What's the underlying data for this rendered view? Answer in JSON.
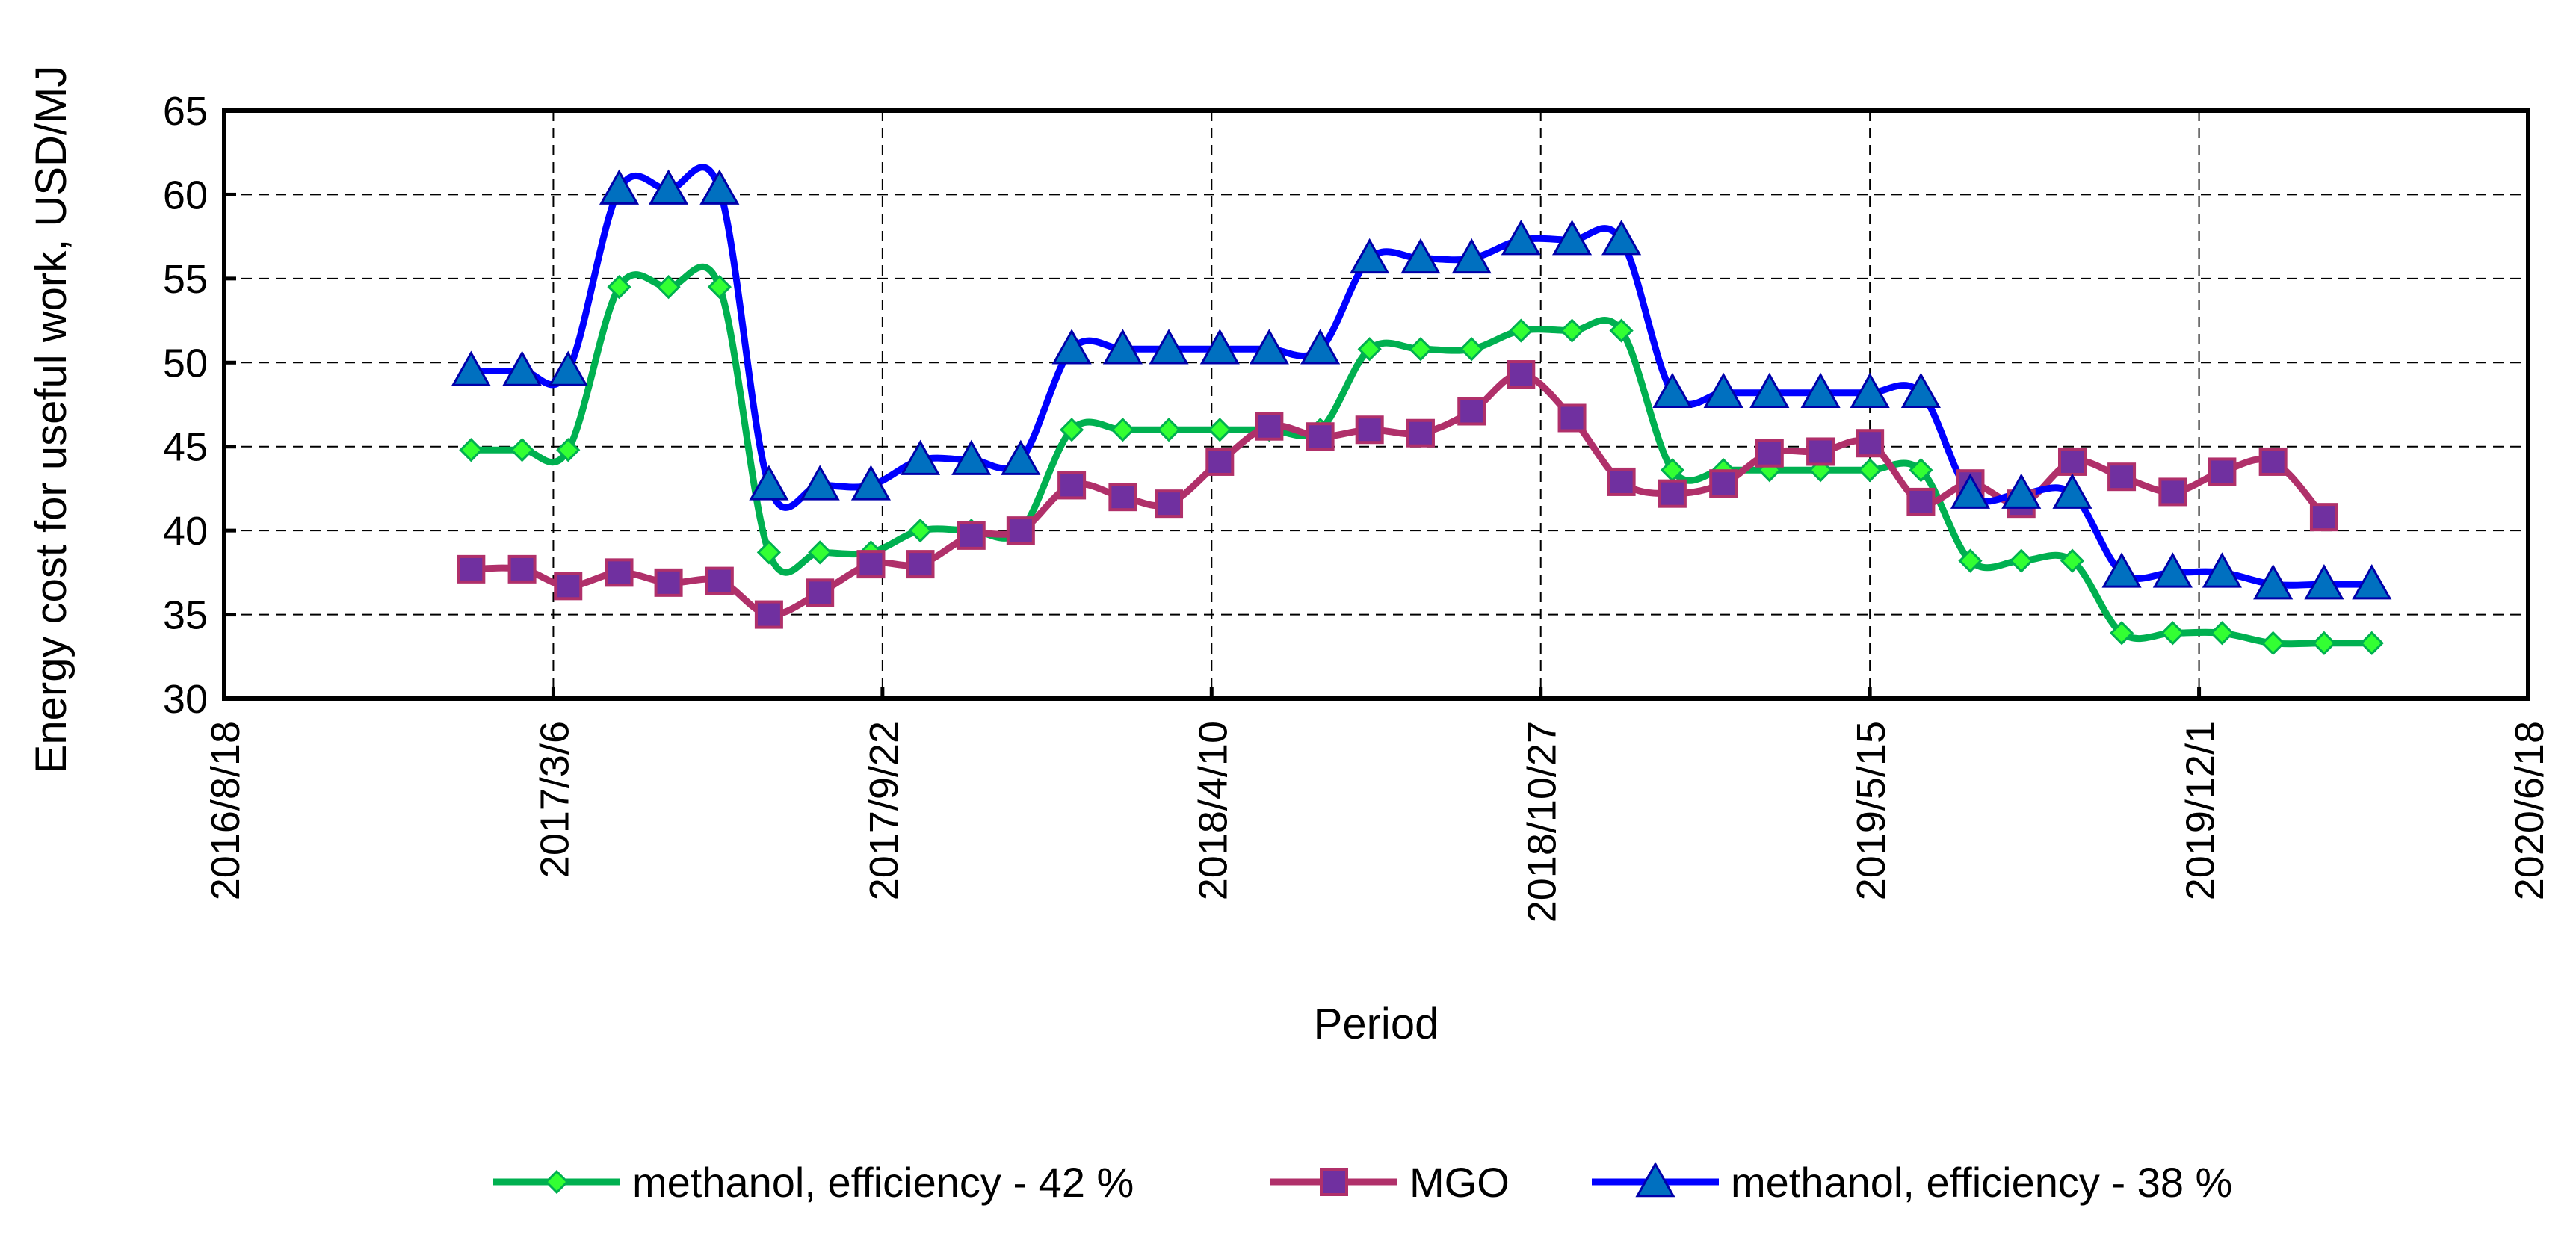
{
  "chart_data": {
    "type": "line",
    "title": "",
    "xlabel": "Period",
    "ylabel": "Energy cost for useful work, USD/MJ",
    "ylim": [
      30,
      65
    ],
    "yticks": [
      "30",
      "35",
      "40",
      "45",
      "50",
      "55",
      "60",
      "65"
    ],
    "xlim": [
      "2016/8/18",
      "2020/6/18"
    ],
    "xticks": [
      "2016/8/18",
      "2017/3/6",
      "2017/9/22",
      "2018/4/10",
      "2018/10/27",
      "2019/5/15",
      "2019/12/1",
      "2020/6/18"
    ],
    "grid": true,
    "legend_position": "bottom",
    "x": [
      "2017/1/15",
      "2017/2/15",
      "2017/3/15",
      "2017/4/15",
      "2017/5/15",
      "2017/6/15",
      "2017/7/15",
      "2017/8/15",
      "2017/9/15",
      "2017/10/15",
      "2017/11/15",
      "2017/12/15",
      "2018/1/15",
      "2018/2/15",
      "2018/3/15",
      "2018/4/15",
      "2018/5/15",
      "2018/6/15",
      "2018/7/15",
      "2018/8/15",
      "2018/9/15",
      "2018/10/15",
      "2018/11/15",
      "2018/12/15",
      "2019/1/15",
      "2019/2/15",
      "2019/3/15",
      "2019/4/15",
      "2019/5/15",
      "2019/6/15",
      "2019/7/15",
      "2019/8/15",
      "2019/9/15",
      "2019/10/15",
      "2019/11/15",
      "2019/12/15",
      "2020/1/15",
      "2020/2/15",
      "2020/3/15"
    ],
    "series": [
      {
        "name": "methanol, efficiency - 42 %",
        "color": "#00B050",
        "marker": "diamond",
        "marker_fill": "#33FF33",
        "values": [
          44.8,
          44.8,
          44.8,
          54.5,
          54.5,
          54.5,
          38.7,
          38.7,
          38.7,
          40.0,
          40.0,
          40.0,
          46.0,
          46.0,
          46.0,
          46.0,
          46.0,
          46.0,
          50.8,
          50.8,
          50.8,
          51.9,
          51.9,
          51.9,
          43.6,
          43.6,
          43.6,
          43.6,
          43.6,
          43.6,
          38.2,
          38.2,
          38.2,
          33.9,
          33.9,
          33.9,
          33.3,
          33.3,
          33.3
        ]
      },
      {
        "name": "MGO",
        "color": "#B0306A",
        "marker": "square",
        "marker_fill": "#7030A0",
        "values": [
          37.7,
          37.7,
          36.7,
          37.5,
          36.9,
          37.0,
          35.0,
          36.3,
          38.0,
          38.0,
          39.7,
          40.0,
          42.7,
          42.0,
          41.6,
          44.1,
          46.2,
          45.6,
          46.0,
          45.8,
          47.1,
          49.3,
          46.7,
          42.9,
          42.2,
          42.8,
          44.6,
          44.7,
          45.2,
          41.7,
          42.8,
          41.6,
          44.1,
          43.2,
          42.3,
          43.5,
          44.1,
          40.8,
          null
        ]
      },
      {
        "name": "methanol, efficiency - 38 %",
        "color": "#0000FF",
        "marker": "triangle",
        "marker_fill": "#0070C0",
        "values": [
          49.5,
          49.5,
          49.5,
          60.3,
          60.3,
          60.3,
          42.7,
          42.7,
          42.7,
          44.2,
          44.2,
          44.2,
          50.8,
          50.8,
          50.8,
          50.8,
          50.8,
          50.8,
          56.2,
          56.2,
          56.2,
          57.3,
          57.3,
          57.3,
          48.2,
          48.2,
          48.2,
          48.2,
          48.2,
          48.2,
          42.2,
          42.2,
          42.2,
          37.5,
          37.5,
          37.5,
          36.8,
          36.8,
          36.8
        ]
      }
    ]
  }
}
